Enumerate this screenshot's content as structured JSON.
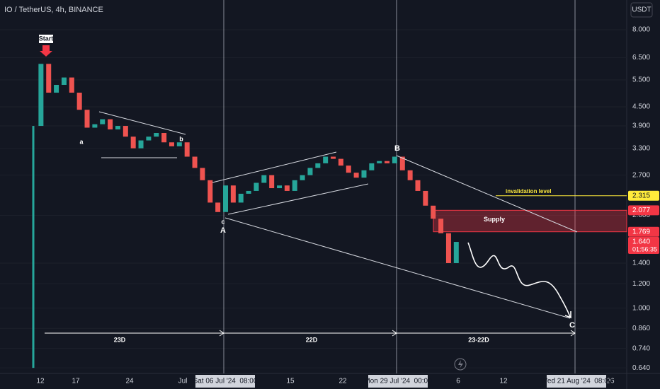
{
  "header": {
    "symbol": "IO / TetherUS, 4h, BINANCE",
    "currency": "USDT"
  },
  "chart_data": {
    "type": "candlestick",
    "first_open": 0.64,
    "closes": [
      3.9,
      6.2,
      5.0,
      5.3,
      5.6,
      5.0,
      4.4,
      3.85,
      3.95,
      4.1,
      3.8,
      3.9,
      3.6,
      3.3,
      3.5,
      3.6,
      3.7,
      3.45,
      3.35,
      3.45,
      3.1,
      2.85,
      2.6,
      2.2,
      2.05,
      2.5,
      2.2,
      2.35,
      2.4,
      2.55,
      2.7,
      2.45,
      2.5,
      2.4,
      2.6,
      2.7,
      2.85,
      2.95,
      3.1,
      3.05,
      2.9,
      2.75,
      2.65,
      2.8,
      2.95,
      3.0,
      2.95,
      3.1,
      2.8,
      2.6,
      2.4,
      2.15,
      1.95,
      1.75,
      1.4,
      1.64
    ],
    "up_color": "#26a69a",
    "down_color": "#ef5350",
    "log_scale": true,
    "ylim": [
      0.614,
      9.99
    ],
    "yticks": [
      {
        "value": 8,
        "label": "8.000"
      },
      {
        "value": 6.5,
        "label": "6.500"
      },
      {
        "value": 5.5,
        "label": "5.500"
      },
      {
        "value": 4.5,
        "label": "4.500"
      },
      {
        "value": 3.9,
        "label": "3.900"
      },
      {
        "value": 3.3,
        "label": "3.300"
      },
      {
        "value": 2.7,
        "label": "2.700"
      },
      {
        "value": 2,
        "label": "2.000"
      },
      {
        "value": 1.4,
        "label": "1.400"
      },
      {
        "value": 1.2,
        "label": "1.200"
      },
      {
        "value": 1,
        "label": "1.000"
      },
      {
        "value": 0.86,
        "label": "0.860"
      },
      {
        "value": 0.74,
        "label": "0.740"
      },
      {
        "value": 0.64,
        "label": "0.640"
      }
    ],
    "x_labels": [
      "12",
      "17",
      "24",
      "Jul",
      "15",
      "22",
      "6",
      "12",
      "26"
    ],
    "crosshair_labels": [
      "Sat 06 Jul '24  08:00",
      "Mon 29 Jul '24  00:00",
      "Wed 21 Aug '24  08:00"
    ],
    "invalidation": {
      "name": "invalidation level",
      "value": 2.315
    },
    "supply": {
      "name": "Supply",
      "top": 2.077,
      "bottom": 1.769
    },
    "last_price": {
      "value": 1.64,
      "label": "1.640",
      "countdown": "01:56:35"
    },
    "annotations": [
      "Start",
      "a",
      "b",
      "c",
      "A",
      "B",
      "C"
    ],
    "durations": [
      "23D",
      "22D",
      "23-22D"
    ]
  }
}
